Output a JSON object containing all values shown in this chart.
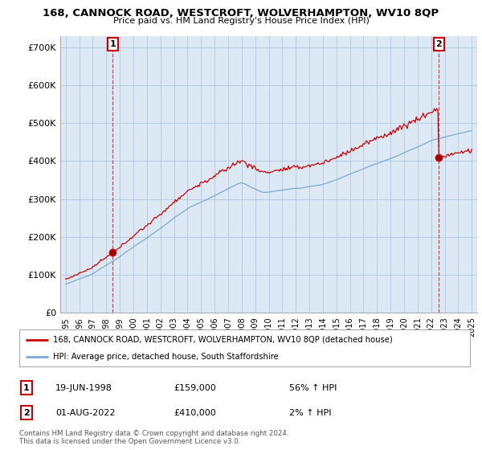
{
  "title": "168, CANNOCK ROAD, WESTCROFT, WOLVERHAMPTON, WV10 8QP",
  "subtitle": "Price paid vs. HM Land Registry's House Price Index (HPI)",
  "legend_line1": "168, CANNOCK ROAD, WESTCROFT, WOLVERHAMPTON, WV10 8QP (detached house)",
  "legend_line2": "HPI: Average price, detached house, South Staffordshire",
  "annotation1_date": "19-JUN-1998",
  "annotation1_price": "£159,000",
  "annotation1_hpi": "56% ↑ HPI",
  "annotation2_date": "01-AUG-2022",
  "annotation2_price": "£410,000",
  "annotation2_hpi": "2% ↑ HPI",
  "footnote": "Contains HM Land Registry data © Crown copyright and database right 2024.\nThis data is licensed under the Open Government Licence v3.0.",
  "red_color": "#cc0000",
  "blue_color": "#7aaad0",
  "plot_bg_color": "#dce9f5",
  "background_color": "#ffffff",
  "grid_color": "#b0c8e0",
  "ylim": [
    0,
    730000
  ],
  "yticks": [
    0,
    100000,
    200000,
    300000,
    400000,
    500000,
    600000,
    700000
  ],
  "ytick_labels": [
    "£0",
    "£100K",
    "£200K",
    "£300K",
    "£400K",
    "£500K",
    "£600K",
    "£700K"
  ],
  "sale1_year": 1998.47,
  "sale1_price": 159000,
  "sale2_year": 2022.58,
  "sale2_price": 410000
}
